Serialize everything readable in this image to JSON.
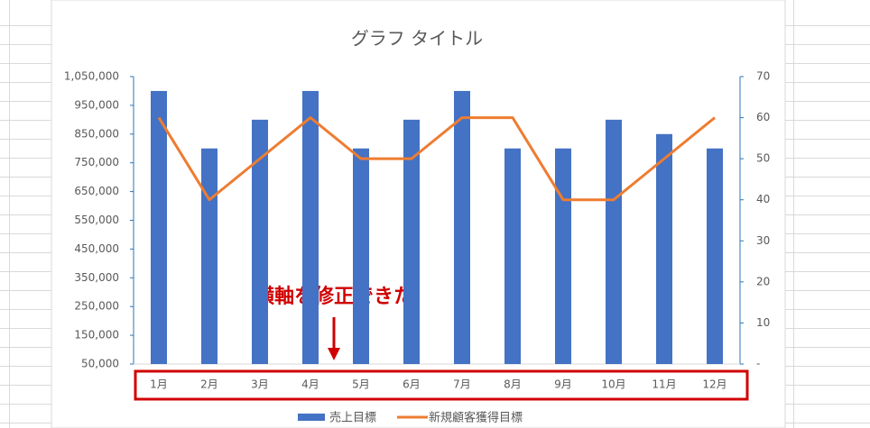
{
  "chart_data": {
    "type": "combo",
    "title": "グラフ タイトル",
    "annotation": "横軸を修正できた",
    "categories": [
      "1月",
      "2月",
      "3月",
      "4月",
      "5月",
      "6月",
      "7月",
      "8月",
      "9月",
      "10月",
      "11月",
      "12月"
    ],
    "series": [
      {
        "name": "売上目標",
        "type": "bar",
        "color": "#4472c4",
        "values": [
          1000000,
          800000,
          900000,
          1000000,
          800000,
          900000,
          1000000,
          800000,
          800000,
          900000,
          850000,
          800000
        ]
      },
      {
        "name": "新規顧客獲得目標",
        "type": "line",
        "axis": "y2",
        "color": "#ed7d31",
        "values": [
          60,
          40,
          50,
          60,
          50,
          50,
          60,
          60,
          40,
          40,
          50,
          60
        ]
      }
    ],
    "ylim": [
      50000,
      1050000
    ],
    "yticks": [
      {
        "value": 50000,
        "label": "50,000"
      },
      {
        "value": 150000,
        "label": "150,000"
      },
      {
        "value": 250000,
        "label": "250,000"
      },
      {
        "value": 350000,
        "label": "350,000"
      },
      {
        "value": 450000,
        "label": "450,000"
      },
      {
        "value": 550000,
        "label": "550,000"
      },
      {
        "value": 650000,
        "label": "650,000"
      },
      {
        "value": 750000,
        "label": "750,000"
      },
      {
        "value": 850000,
        "label": "850,000"
      },
      {
        "value": 950000,
        "label": "950,000"
      },
      {
        "value": 1050000,
        "label": "1,050,000"
      }
    ],
    "y2lim": [
      0,
      70
    ],
    "y2ticks": [
      {
        "value": 0,
        "label": "-"
      },
      10,
      20,
      30,
      40,
      50,
      60,
      70
    ]
  }
}
